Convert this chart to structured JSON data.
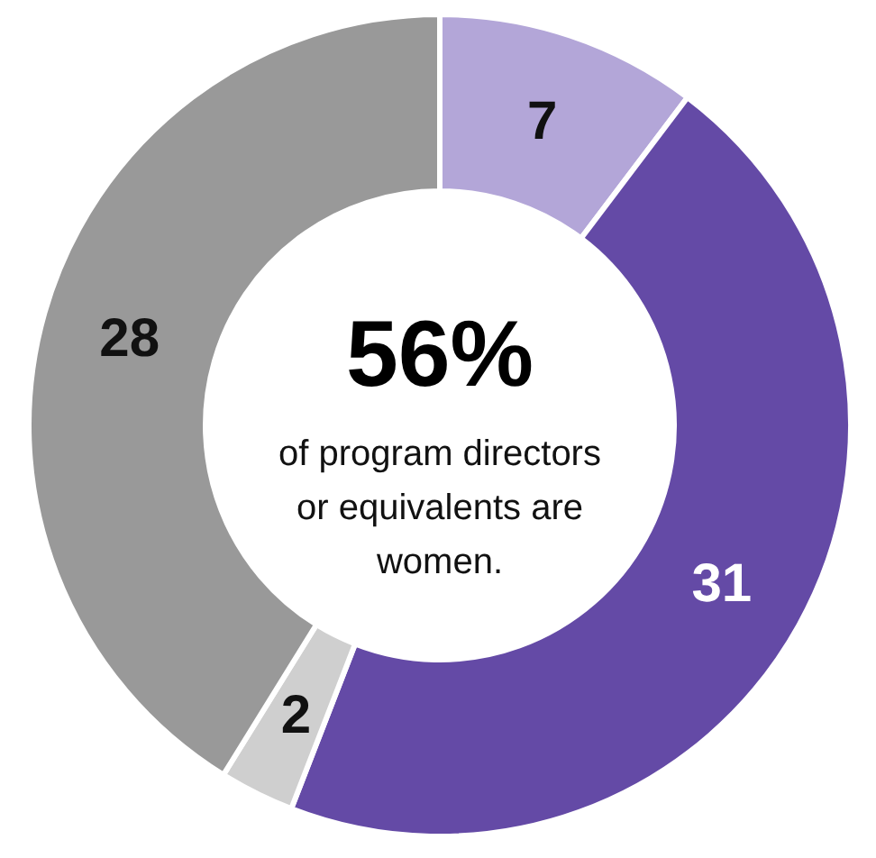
{
  "chart_data": {
    "type": "donut",
    "categories": [
      null,
      null,
      null,
      null
    ],
    "values": [
      7,
      31,
      2,
      28
    ],
    "colors": [
      "#b3a6d8",
      "#644aa6",
      "#cfcfcf",
      "#999999"
    ],
    "data_labels": true,
    "annotations": [
      "56%",
      "of program directors or equivalents are women."
    ]
  }
}
